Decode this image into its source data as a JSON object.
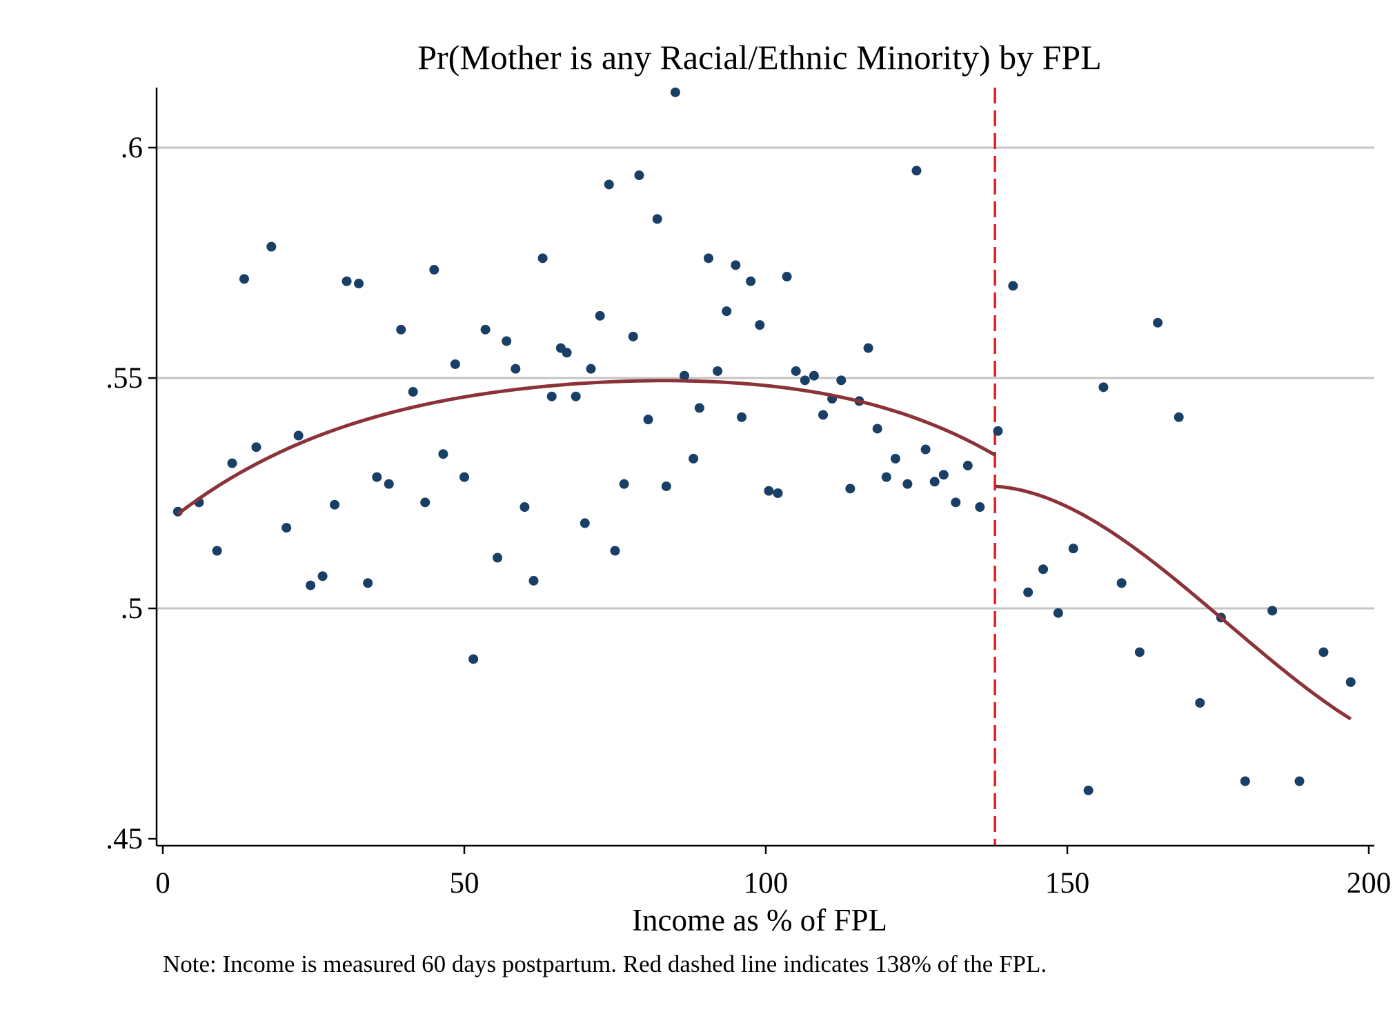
{
  "chart_data": {
    "type": "scatter",
    "title": "Pr(Mother is any Racial/Ethnic Minority) by FPL",
    "xlabel": "Income as % of FPL",
    "ylabel": "",
    "note": "Note: Income is measured 60 days postpartum. Red dashed line indicates 138% of the FPL.",
    "xlim": [
      0,
      200
    ],
    "ylim": [
      0.45,
      0.61
    ],
    "x_ticks": [
      {
        "value": 0,
        "label": "0"
      },
      {
        "value": 50,
        "label": "50"
      },
      {
        "value": 100,
        "label": "100"
      },
      {
        "value": 150,
        "label": "150"
      },
      {
        "value": 200,
        "label": "200"
      }
    ],
    "y_ticks": [
      {
        "value": 0.45,
        "label": ".45"
      },
      {
        "value": 0.5,
        "label": ".5"
      },
      {
        "value": 0.55,
        "label": ".55"
      },
      {
        "value": 0.6,
        "label": ".6"
      }
    ],
    "grid": "horizontal",
    "cutoff": 138,
    "colors": {
      "points": "#1a3f66",
      "fit": "#8b3338",
      "cutoff": "#e0201e",
      "grid": "#c4c4c4",
      "axis": "#000000"
    },
    "points": [
      [
        2.5,
        0.521
      ],
      [
        6,
        0.523
      ],
      [
        9,
        0.5125
      ],
      [
        11.5,
        0.5315
      ],
      [
        13.5,
        0.5715
      ],
      [
        15.5,
        0.535
      ],
      [
        18,
        0.5785
      ],
      [
        20.5,
        0.5175
      ],
      [
        22.5,
        0.5375
      ],
      [
        24.5,
        0.505
      ],
      [
        26.5,
        0.507
      ],
      [
        28.5,
        0.5225
      ],
      [
        30.5,
        0.571
      ],
      [
        32.5,
        0.5705
      ],
      [
        34,
        0.5055
      ],
      [
        35.5,
        0.5285
      ],
      [
        37.5,
        0.527
      ],
      [
        39.5,
        0.5605
      ],
      [
        41.5,
        0.547
      ],
      [
        43.5,
        0.523
      ],
      [
        45,
        0.5735
      ],
      [
        46.5,
        0.5335
      ],
      [
        48.5,
        0.553
      ],
      [
        50,
        0.5285
      ],
      [
        51.5,
        0.489
      ],
      [
        53.5,
        0.5605
      ],
      [
        55.5,
        0.511
      ],
      [
        57,
        0.558
      ],
      [
        58.5,
        0.552
      ],
      [
        60,
        0.522
      ],
      [
        61.5,
        0.506
      ],
      [
        63,
        0.576
      ],
      [
        64.5,
        0.546
      ],
      [
        66,
        0.5565
      ],
      [
        67,
        0.5555
      ],
      [
        68.5,
        0.546
      ],
      [
        70,
        0.5185
      ],
      [
        71,
        0.552
      ],
      [
        72.5,
        0.5635
      ],
      [
        74,
        0.592
      ],
      [
        75,
        0.5125
      ],
      [
        76.5,
        0.527
      ],
      [
        78,
        0.559
      ],
      [
        79,
        0.594
      ],
      [
        80.5,
        0.541
      ],
      [
        82,
        0.5845
      ],
      [
        83.5,
        0.5265
      ],
      [
        85,
        0.612
      ],
      [
        86.5,
        0.5505
      ],
      [
        88,
        0.5325
      ],
      [
        89,
        0.5435
      ],
      [
        90.5,
        0.576
      ],
      [
        92,
        0.5515
      ],
      [
        93.5,
        0.5645
      ],
      [
        95,
        0.5745
      ],
      [
        96,
        0.5415
      ],
      [
        97.5,
        0.571
      ],
      [
        99,
        0.5615
      ],
      [
        100.5,
        0.5255
      ],
      [
        102,
        0.525
      ],
      [
        103.5,
        0.572
      ],
      [
        105,
        0.5515
      ],
      [
        106.5,
        0.5495
      ],
      [
        108,
        0.5505
      ],
      [
        109.5,
        0.542
      ],
      [
        111,
        0.5455
      ],
      [
        112.5,
        0.5495
      ],
      [
        114,
        0.526
      ],
      [
        115.5,
        0.545
      ],
      [
        117,
        0.5565
      ],
      [
        118.5,
        0.539
      ],
      [
        120,
        0.5285
      ],
      [
        121.5,
        0.5325
      ],
      [
        123.5,
        0.527
      ],
      [
        125,
        0.595
      ],
      [
        126.5,
        0.5345
      ],
      [
        128,
        0.5275
      ],
      [
        129.5,
        0.529
      ],
      [
        131.5,
        0.523
      ],
      [
        133.5,
        0.531
      ],
      [
        135.5,
        0.522
      ],
      [
        138.5,
        0.5385
      ],
      [
        141,
        0.57
      ],
      [
        143.5,
        0.5035
      ],
      [
        146,
        0.5085
      ],
      [
        148.5,
        0.499
      ],
      [
        151,
        0.513
      ],
      [
        153.5,
        0.4605
      ],
      [
        156,
        0.548
      ],
      [
        159,
        0.5055
      ],
      [
        162,
        0.4905
      ],
      [
        165,
        0.562
      ],
      [
        168.5,
        0.5415
      ],
      [
        172,
        0.4795
      ],
      [
        175.5,
        0.498
      ],
      [
        179.5,
        0.4625
      ],
      [
        184,
        0.4995
      ],
      [
        188.5,
        0.4625
      ],
      [
        192.5,
        0.4905
      ],
      [
        197,
        0.484
      ]
    ],
    "fit_left": {
      "x_range": [
        2.5,
        138
      ],
      "points": [
        [
          2.5,
          0.5205
        ],
        [
          40,
          0.5432
        ],
        [
          80,
          0.5494
        ],
        [
          110,
          0.5465
        ],
        [
          138,
          0.5333
        ]
      ]
    },
    "fit_right": {
      "x_range": [
        138,
        197
      ],
      "points": [
        [
          138,
          0.5265
        ],
        [
          155,
          0.5185
        ],
        [
          175,
          0.4985
        ],
        [
          197,
          0.476
        ]
      ]
    }
  }
}
